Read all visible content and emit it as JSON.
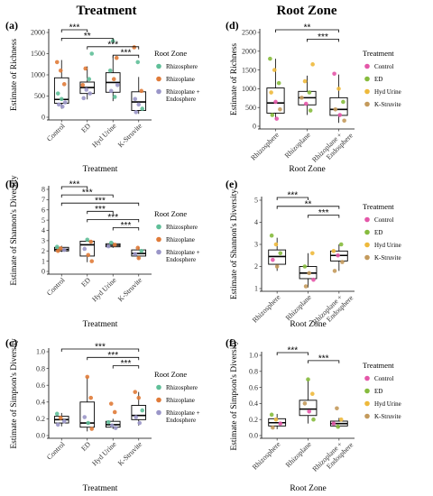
{
  "column_titles": [
    "Treatment",
    "Root Zone"
  ],
  "colors": {
    "Rhizosphere": "#5fbf98",
    "Rhizoplane": "#e07b39",
    "Rhizoplane + Endosphere": "#9a96c8",
    "Control": "#e457a8",
    "ED": "#86bb3d",
    "Hyd Urine": "#eeb93b",
    "K-Struvite": "#c49a5c"
  },
  "chart_data": [
    {
      "type": "box",
      "panel": "(a)",
      "ylabel": "Estimate of Richness",
      "xlabel": "Treatment",
      "categories": [
        "Control",
        "ED",
        "Hyd Urine",
        "K-Struvite"
      ],
      "ylim": [
        0,
        2000
      ],
      "yticks": [
        "0",
        "500",
        "1000",
        "1500",
        "2000"
      ],
      "yticks_num": [
        0,
        500,
        1000,
        1500,
        2000
      ],
      "boxes": [
        {
          "q1": 330,
          "median": 420,
          "q3": 930,
          "lo": 200,
          "hi": 1350
        },
        {
          "q1": 560,
          "median": 700,
          "q3": 830,
          "lo": 420,
          "hi": 1200
        },
        {
          "q1": 590,
          "median": 820,
          "q3": 1050,
          "lo": 380,
          "hi": 1450
        },
        {
          "q1": 160,
          "median": 360,
          "q3": 600,
          "lo": 80,
          "hi": 950
        }
      ],
      "points": [
        {
          "x": 0,
          "y": 1300,
          "g": "Rhizoplane"
        },
        {
          "x": 0,
          "y": 1100,
          "g": "Rhizoplane"
        },
        {
          "x": 0,
          "y": 780,
          "g": "Rhizoplane"
        },
        {
          "x": 0,
          "y": 560,
          "g": "Rhizosphere"
        },
        {
          "x": 0,
          "y": 430,
          "g": "Rhizosphere"
        },
        {
          "x": 0,
          "y": 350,
          "g": "Rhizoplane + Endosphere"
        },
        {
          "x": 0,
          "y": 300,
          "g": "Rhizoplane + Endosphere"
        },
        {
          "x": 0,
          "y": 250,
          "g": "Rhizoplane + Endosphere"
        },
        {
          "x": 1,
          "y": 1500,
          "g": "Rhizosphere"
        },
        {
          "x": 1,
          "y": 1150,
          "g": "Rhizoplane"
        },
        {
          "x": 1,
          "y": 900,
          "g": "Rhizosphere"
        },
        {
          "x": 1,
          "y": 760,
          "g": "Rhizoplane"
        },
        {
          "x": 1,
          "y": 650,
          "g": "Rhizoplane + Endosphere"
        },
        {
          "x": 1,
          "y": 560,
          "g": "Rhizoplane + Endosphere"
        },
        {
          "x": 1,
          "y": 450,
          "g": "Rhizoplane + Endosphere"
        },
        {
          "x": 2,
          "y": 1800,
          "g": "Rhizosphere"
        },
        {
          "x": 2,
          "y": 1400,
          "g": "Rhizoplane"
        },
        {
          "x": 2,
          "y": 1100,
          "g": "Rhizosphere"
        },
        {
          "x": 2,
          "y": 900,
          "g": "Rhizoplane"
        },
        {
          "x": 2,
          "y": 760,
          "g": "Rhizoplane + Endosphere"
        },
        {
          "x": 2,
          "y": 620,
          "g": "Rhizoplane + Endosphere"
        },
        {
          "x": 2,
          "y": 480,
          "g": "Rhizosphere"
        },
        {
          "x": 3,
          "y": 1650,
          "g": "Rhizoplane"
        },
        {
          "x": 3,
          "y": 1300,
          "g": "Rhizosphere"
        },
        {
          "x": 3,
          "y": 620,
          "g": "Rhizoplane"
        },
        {
          "x": 3,
          "y": 430,
          "g": "Rhizoplane + Endosphere"
        },
        {
          "x": 3,
          "y": 300,
          "g": "Rhizoplane + Endosphere"
        },
        {
          "x": 3,
          "y": 200,
          "g": "Rhizosphere"
        },
        {
          "x": 3,
          "y": 120,
          "g": "Rhizoplane + Endosphere"
        }
      ],
      "brackets": [
        {
          "a": 0,
          "b": 1,
          "label": "***"
        },
        {
          "a": 0,
          "b": 2,
          "label": "**"
        },
        {
          "a": 1,
          "b": 3,
          "label": "***"
        },
        {
          "a": 2,
          "b": 3,
          "label": "***"
        }
      ],
      "legend_title": "Root Zone",
      "legend": [
        "Rhizosphere",
        "Rhizoplane",
        "Rhizoplane + Endosphere"
      ]
    },
    {
      "type": "box",
      "panel": "(b)",
      "ylabel": "Estimate of Shannon's Diversity",
      "xlabel": "Treatment",
      "categories": [
        "Control",
        "ED",
        "Hyd Urine",
        "K-Struvite"
      ],
      "ylim": [
        0,
        8
      ],
      "yticks": [
        "0",
        "1",
        "2",
        "3",
        "4",
        "5",
        "6",
        "7",
        "8"
      ],
      "yticks_num": [
        0,
        1,
        2,
        3,
        4,
        5,
        6,
        7,
        8
      ],
      "boxes": [
        {
          "q1": 2.0,
          "median": 2.15,
          "q3": 2.35,
          "lo": 1.9,
          "hi": 2.5
        },
        {
          "q1": 1.5,
          "median": 2.6,
          "q3": 2.95,
          "lo": 0.9,
          "hi": 3.1
        },
        {
          "q1": 2.4,
          "median": 2.55,
          "q3": 2.7,
          "lo": 2.3,
          "hi": 2.85
        },
        {
          "q1": 1.5,
          "median": 1.75,
          "q3": 2.1,
          "lo": 1.2,
          "hi": 2.4
        }
      ],
      "points": [
        {
          "x": 0,
          "y": 2.4,
          "g": "Rhizosphere"
        },
        {
          "x": 0,
          "y": 2.25,
          "g": "Rhizoplane"
        },
        {
          "x": 0,
          "y": 2.1,
          "g": "Rhizoplane + Endosphere"
        },
        {
          "x": 0,
          "y": 2.0,
          "g": "Rhizoplane"
        },
        {
          "x": 1,
          "y": 3.1,
          "g": "Rhizosphere"
        },
        {
          "x": 1,
          "y": 2.9,
          "g": "Rhizoplane"
        },
        {
          "x": 1,
          "y": 2.2,
          "g": "Rhizoplane + Endosphere"
        },
        {
          "x": 1,
          "y": 1.6,
          "g": "Rhizoplane"
        },
        {
          "x": 1,
          "y": 1.0,
          "g": "Rhizoplane"
        },
        {
          "x": 2,
          "y": 2.8,
          "g": "Rhizosphere"
        },
        {
          "x": 2,
          "y": 2.6,
          "g": "Rhizoplane"
        },
        {
          "x": 2,
          "y": 2.45,
          "g": "Rhizoplane + Endosphere"
        },
        {
          "x": 3,
          "y": 2.3,
          "g": "Rhizoplane"
        },
        {
          "x": 3,
          "y": 2.0,
          "g": "Rhizosphere"
        },
        {
          "x": 3,
          "y": 1.7,
          "g": "Rhizoplane + Endosphere"
        },
        {
          "x": 3,
          "y": 1.3,
          "g": "Rhizoplane"
        }
      ],
      "brackets": [
        {
          "a": 0,
          "b": 1,
          "label": "***"
        },
        {
          "a": 0,
          "b": 2,
          "label": "***"
        },
        {
          "a": 0,
          "b": 3,
          "label": "***"
        },
        {
          "a": 1,
          "b": 2,
          "label": "***"
        },
        {
          "a": 1,
          "b": 3,
          "label": "***"
        },
        {
          "a": 2,
          "b": 3,
          "label": "***"
        }
      ],
      "legend_title": "Root Zone",
      "legend": [
        "Rhizosphere",
        "Rhizoplane",
        "Rhizoplane + Endosphere"
      ]
    },
    {
      "type": "box",
      "panel": "(c)",
      "ylabel": "Estimate of Simpson's Diversity",
      "xlabel": "Treatment",
      "categories": [
        "Control",
        "ED",
        "Hyd Urine",
        "K-Struvite"
      ],
      "ylim": [
        0,
        1.0
      ],
      "yticks": [
        "0.0",
        "0.2",
        "0.4",
        "0.6",
        "0.8",
        "1.0"
      ],
      "yticks_num": [
        0,
        0.2,
        0.4,
        0.6,
        0.8,
        1.0
      ],
      "boxes": [
        {
          "q1": 0.15,
          "median": 0.19,
          "q3": 0.23,
          "lo": 0.11,
          "hi": 0.27
        },
        {
          "q1": 0.1,
          "median": 0.15,
          "q3": 0.4,
          "lo": 0.05,
          "hi": 0.7
        },
        {
          "q1": 0.1,
          "median": 0.13,
          "q3": 0.17,
          "lo": 0.08,
          "hi": 0.2
        },
        {
          "q1": 0.19,
          "median": 0.24,
          "q3": 0.36,
          "lo": 0.12,
          "hi": 0.52
        }
      ],
      "points": [
        {
          "x": 0,
          "y": 0.26,
          "g": "Rhizosphere"
        },
        {
          "x": 0,
          "y": 0.21,
          "g": "Rhizoplane"
        },
        {
          "x": 0,
          "y": 0.17,
          "g": "Rhizoplane + Endosphere"
        },
        {
          "x": 0,
          "y": 0.13,
          "g": "Rhizoplane + Endosphere"
        },
        {
          "x": 1,
          "y": 0.7,
          "g": "Rhizoplane"
        },
        {
          "x": 1,
          "y": 0.45,
          "g": "Rhizoplane"
        },
        {
          "x": 1,
          "y": 0.22,
          "g": "Rhizoplane + Endosphere"
        },
        {
          "x": 1,
          "y": 0.15,
          "g": "Rhizosphere"
        },
        {
          "x": 1,
          "y": 0.08,
          "g": "Rhizoplane"
        },
        {
          "x": 2,
          "y": 0.38,
          "g": "Rhizoplane"
        },
        {
          "x": 2,
          "y": 0.28,
          "g": "Rhizoplane"
        },
        {
          "x": 2,
          "y": 0.16,
          "g": "Rhizosphere"
        },
        {
          "x": 2,
          "y": 0.12,
          "g": "Rhizoplane + Endosphere"
        },
        {
          "x": 2,
          "y": 0.09,
          "g": "Rhizoplane + Endosphere"
        },
        {
          "x": 3,
          "y": 0.52,
          "g": "Rhizoplane"
        },
        {
          "x": 3,
          "y": 0.45,
          "g": "Rhizoplane"
        },
        {
          "x": 3,
          "y": 0.3,
          "g": "Rhizosphere"
        },
        {
          "x": 3,
          "y": 0.22,
          "g": "Rhizoplane + Endosphere"
        },
        {
          "x": 3,
          "y": 0.15,
          "g": "Rhizoplane + Endosphere"
        }
      ],
      "brackets": [
        {
          "a": 0,
          "b": 3,
          "label": "***"
        },
        {
          "a": 1,
          "b": 3,
          "label": "***"
        },
        {
          "a": 2,
          "b": 3,
          "label": "***"
        }
      ],
      "legend_title": "Root Zone",
      "legend": [
        "Rhizosphere",
        "Rhizoplane",
        "Rhizoplane + Endosphere"
      ]
    },
    {
      "type": "box",
      "panel": "(d)",
      "ylabel": "Estimate of Richness",
      "xlabel": "Root Zone",
      "categories": [
        "Rhizosphere",
        "Rhizoplane",
        "Rhizoplane + Endosphere"
      ],
      "ylim": [
        0,
        2500
      ],
      "yticks": [
        "0",
        "500",
        "1000",
        "1500",
        "2000",
        "2500"
      ],
      "yticks_num": [
        0,
        500,
        1000,
        1500,
        2000,
        2500
      ],
      "boxes": [
        {
          "q1": 350,
          "median": 620,
          "q3": 1020,
          "lo": 180,
          "hi": 1800
        },
        {
          "q1": 570,
          "median": 760,
          "q3": 930,
          "lo": 300,
          "hi": 1350
        },
        {
          "q1": 290,
          "median": 450,
          "q3": 760,
          "lo": 90,
          "hi": 1380
        }
      ],
      "points": [
        {
          "x": 0,
          "y": 1800,
          "g": "ED"
        },
        {
          "x": 0,
          "y": 1500,
          "g": "Hyd Urine"
        },
        {
          "x": 0,
          "y": 1150,
          "g": "ED"
        },
        {
          "x": 0,
          "y": 900,
          "g": "Hyd Urine"
        },
        {
          "x": 0,
          "y": 650,
          "g": "Control"
        },
        {
          "x": 0,
          "y": 450,
          "g": "K-Struvite"
        },
        {
          "x": 0,
          "y": 300,
          "g": "ED"
        },
        {
          "x": 0,
          "y": 200,
          "g": "Control"
        },
        {
          "x": 1,
          "y": 1650,
          "g": "Hyd Urine"
        },
        {
          "x": 1,
          "y": 1200,
          "g": "Hyd Urine"
        },
        {
          "x": 1,
          "y": 900,
          "g": "ED"
        },
        {
          "x": 1,
          "y": 760,
          "g": "K-Struvite"
        },
        {
          "x": 1,
          "y": 600,
          "g": "Control"
        },
        {
          "x": 1,
          "y": 420,
          "g": "ED"
        },
        {
          "x": 2,
          "y": 1400,
          "g": "Control"
        },
        {
          "x": 2,
          "y": 1000,
          "g": "Hyd Urine"
        },
        {
          "x": 2,
          "y": 650,
          "g": "ED"
        },
        {
          "x": 2,
          "y": 450,
          "g": "K-Struvite"
        },
        {
          "x": 2,
          "y": 300,
          "g": "Control"
        },
        {
          "x": 2,
          "y": 150,
          "g": "K-Struvite"
        }
      ],
      "brackets": [
        {
          "a": 0,
          "b": 2,
          "label": "**"
        },
        {
          "a": 1,
          "b": 2,
          "label": "***"
        }
      ],
      "legend_title": "Treatment",
      "legend": [
        "Control",
        "ED",
        "Hyd Urine",
        "K-Struvite"
      ]
    },
    {
      "type": "box",
      "panel": "(e)",
      "ylabel": "Estimate of Shannon's Diversity",
      "xlabel": "Root Zone",
      "categories": [
        "Rhizosphere",
        "Rhizoplane",
        "Rhizoplane + Endosphere"
      ],
      "ylim": [
        1,
        5
      ],
      "yticks": [
        "1",
        "2",
        "3",
        "4",
        "5"
      ],
      "yticks_num": [
        1,
        2,
        3,
        4,
        5
      ],
      "boxes": [
        {
          "q1": 2.1,
          "median": 2.45,
          "q3": 2.75,
          "lo": 1.8,
          "hi": 3.3
        },
        {
          "q1": 1.45,
          "median": 1.7,
          "q3": 2.0,
          "lo": 1.05,
          "hi": 2.6
        },
        {
          "q1": 2.25,
          "median": 2.5,
          "q3": 2.7,
          "lo": 1.8,
          "hi": 3.0
        }
      ],
      "points": [
        {
          "x": 0,
          "y": 3.4,
          "g": "ED"
        },
        {
          "x": 0,
          "y": 3.0,
          "g": "Hyd Urine"
        },
        {
          "x": 0,
          "y": 2.6,
          "g": "ED"
        },
        {
          "x": 0,
          "y": 2.3,
          "g": "Control"
        },
        {
          "x": 0,
          "y": 2.0,
          "g": "K-Struvite"
        },
        {
          "x": 1,
          "y": 2.6,
          "g": "Hyd Urine"
        },
        {
          "x": 1,
          "y": 2.0,
          "g": "ED"
        },
        {
          "x": 1,
          "y": 1.7,
          "g": "K-Struvite"
        },
        {
          "x": 1,
          "y": 1.4,
          "g": "Control"
        },
        {
          "x": 1,
          "y": 1.1,
          "g": "K-Struvite"
        },
        {
          "x": 2,
          "y": 3.0,
          "g": "ED"
        },
        {
          "x": 2,
          "y": 2.7,
          "g": "Hyd Urine"
        },
        {
          "x": 2,
          "y": 2.5,
          "g": "Control"
        },
        {
          "x": 2,
          "y": 2.2,
          "g": "K-Struvite"
        },
        {
          "x": 2,
          "y": 1.8,
          "g": "K-Struvite"
        }
      ],
      "brackets": [
        {
          "a": 0,
          "b": 1,
          "label": "***"
        },
        {
          "a": 0,
          "b": 2,
          "label": "**"
        },
        {
          "a": 1,
          "b": 2,
          "label": "***"
        }
      ],
      "legend_title": "Treatment",
      "legend": [
        "Control",
        "ED",
        "Hyd Urine",
        "K-Struvite"
      ]
    },
    {
      "type": "box",
      "panel": "(f)",
      "ylabel": "Estimate of Simpson's Diversity",
      "xlabel": "Root Zone",
      "categories": [
        "Rhizosphere",
        "Rhizoplane",
        "Rhizoplane + Endosphere"
      ],
      "ylim": [
        0,
        1.0
      ],
      "yticks": [
        "0.0",
        "0.2",
        "0.4",
        "0.6",
        "0.8",
        "1.0"
      ],
      "yticks_num": [
        0,
        0.2,
        0.4,
        0.6,
        0.8,
        1.0
      ],
      "boxes": [
        {
          "q1": 0.12,
          "median": 0.16,
          "q3": 0.21,
          "lo": 0.08,
          "hi": 0.27
        },
        {
          "q1": 0.25,
          "median": 0.33,
          "q3": 0.44,
          "lo": 0.15,
          "hi": 0.7
        },
        {
          "q1": 0.12,
          "median": 0.15,
          "q3": 0.18,
          "lo": 0.09,
          "hi": 0.22
        }
      ],
      "points": [
        {
          "x": 0,
          "y": 0.26,
          "g": "ED"
        },
        {
          "x": 0,
          "y": 0.2,
          "g": "Hyd Urine"
        },
        {
          "x": 0,
          "y": 0.15,
          "g": "Control"
        },
        {
          "x": 0,
          "y": 0.1,
          "g": "K-Struvite"
        },
        {
          "x": 1,
          "y": 0.7,
          "g": "ED"
        },
        {
          "x": 1,
          "y": 0.52,
          "g": "Hyd Urine"
        },
        {
          "x": 1,
          "y": 0.4,
          "g": "K-Struvite"
        },
        {
          "x": 1,
          "y": 0.3,
          "g": "Control"
        },
        {
          "x": 1,
          "y": 0.2,
          "g": "ED"
        },
        {
          "x": 2,
          "y": 0.34,
          "g": "K-Struvite"
        },
        {
          "x": 2,
          "y": 0.2,
          "g": "Hyd Urine"
        },
        {
          "x": 2,
          "y": 0.15,
          "g": "Control"
        },
        {
          "x": 2,
          "y": 0.11,
          "g": "ED"
        }
      ],
      "brackets": [
        {
          "a": 0,
          "b": 1,
          "label": "***"
        },
        {
          "a": 1,
          "b": 2,
          "label": "***"
        }
      ],
      "legend_title": "Treatment",
      "legend": [
        "Control",
        "ED",
        "Hyd Urine",
        "K-Struvite"
      ]
    }
  ]
}
